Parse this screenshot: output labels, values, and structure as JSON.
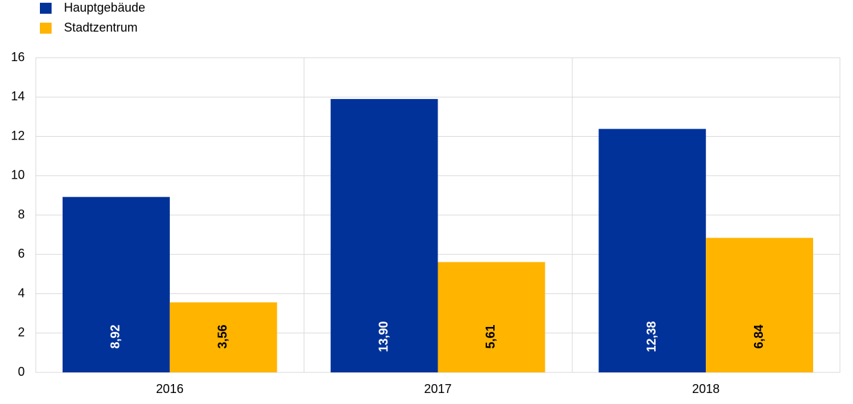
{
  "chart_data": {
    "type": "bar",
    "categories": [
      "2016",
      "2017",
      "2018"
    ],
    "series": [
      {
        "name": "Hauptgebäude",
        "color": "#003299",
        "label_color": "#ffffff",
        "values": [
          8.92,
          13.9,
          12.38
        ],
        "value_labels": [
          "8,92",
          "13,90",
          "12,38"
        ]
      },
      {
        "name": "Stadtzentrum",
        "color": "#ffb400",
        "label_color": "#000000",
        "values": [
          3.56,
          5.61,
          6.84
        ],
        "value_labels": [
          "3,56",
          "5,61",
          "6,84"
        ]
      }
    ],
    "ylim": [
      0,
      16
    ],
    "yticks": [
      0,
      2,
      4,
      6,
      8,
      10,
      12,
      14,
      16
    ],
    "grid": true
  }
}
